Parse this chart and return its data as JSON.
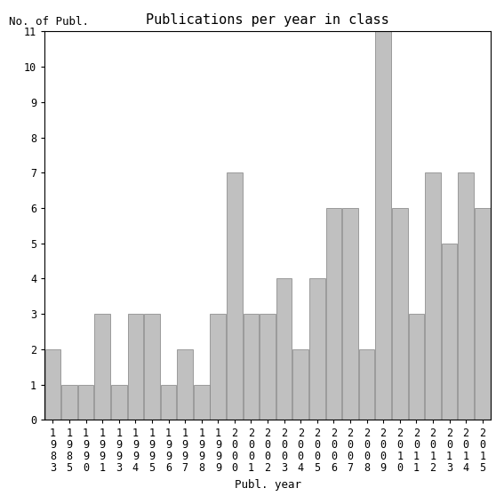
{
  "years": [
    1983,
    1985,
    1990,
    1991,
    1993,
    1994,
    1995,
    1996,
    1997,
    1998,
    1999,
    2000,
    2001,
    2002,
    2003,
    2004,
    2005,
    2006,
    2007,
    2008,
    2009,
    2010,
    2011,
    2012,
    2013,
    2014,
    2015
  ],
  "values": [
    2,
    1,
    1,
    3,
    1,
    3,
    3,
    1,
    2,
    1,
    3,
    7,
    3,
    3,
    4,
    2,
    4,
    6,
    6,
    2,
    11,
    6,
    3,
    7,
    5,
    7,
    6
  ],
  "bar_color": "#c0c0c0",
  "bar_edge_color": "#808080",
  "title": "Publications per year in class",
  "xlabel": "Publ. year",
  "ylabel": "No. of Publ.",
  "ylim": [
    0,
    11
  ],
  "yticks": [
    0,
    1,
    2,
    3,
    4,
    5,
    6,
    7,
    8,
    9,
    10,
    11
  ],
  "background_color": "#ffffff",
  "title_fontsize": 11,
  "axis_label_fontsize": 9,
  "tick_fontsize": 8.5
}
